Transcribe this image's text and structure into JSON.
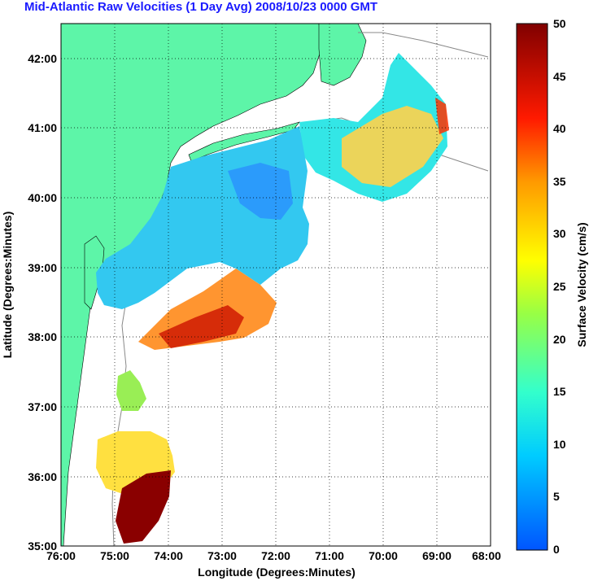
{
  "title": "Mid-Atlantic Raw Velocities (1 Day Avg) 2008/10/23 0000 GMT",
  "map": {
    "xlabel": "Longitude (Degrees:Minutes)",
    "ylabel": "Latitude (Degrees:Minutes)",
    "x_ticks": [
      "76:00",
      "75:00",
      "74:00",
      "73:00",
      "72:00",
      "71:00",
      "70:00",
      "69:00",
      "68:00"
    ],
    "y_ticks": [
      "42:00",
      "41:00",
      "40:00",
      "39:00",
      "38:00",
      "37:00",
      "36:00",
      "35:00"
    ],
    "lon_range": [
      -76,
      -68
    ],
    "lat_range": [
      35,
      42.5
    ],
    "grid": true,
    "land_color": "#5df5a8"
  },
  "colorbar": {
    "label": "Surface Velocity (cm/s)",
    "ticks": [
      "50",
      "45",
      "40",
      "35",
      "30",
      "25",
      "20",
      "15",
      "10",
      "5",
      "0"
    ],
    "range": [
      0,
      50
    ],
    "colormap": "jet"
  }
}
